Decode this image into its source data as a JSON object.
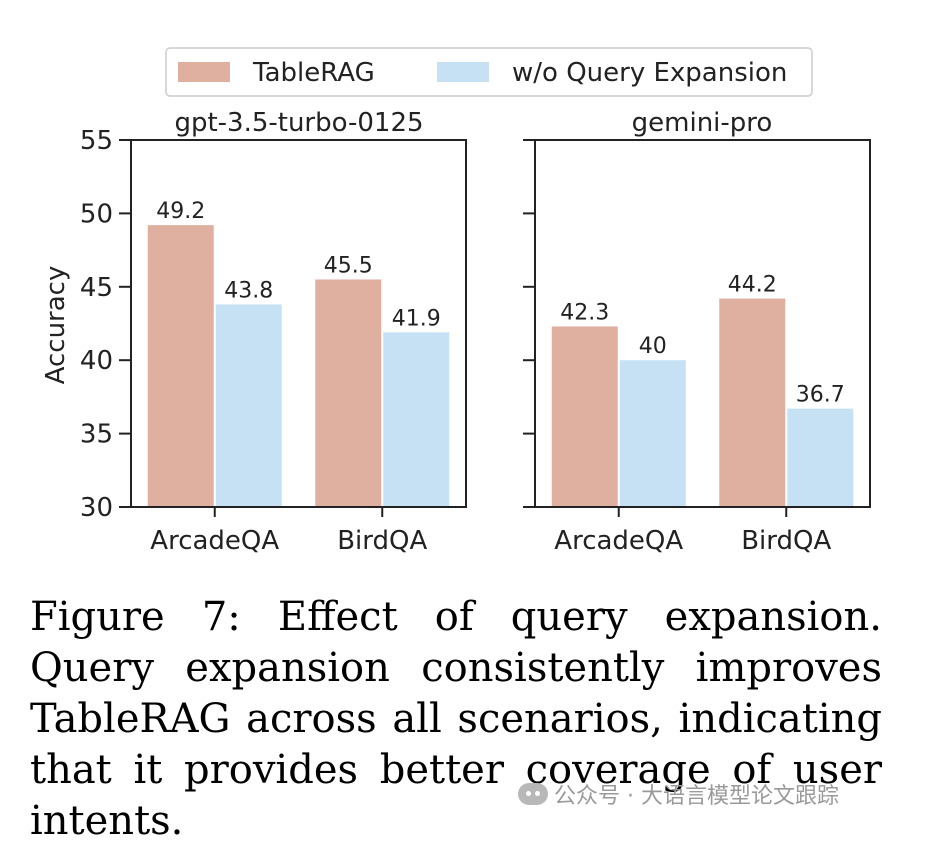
{
  "chart_data": {
    "type": "bar",
    "ylabel": "Accuracy",
    "ylim": [
      30,
      55
    ],
    "yticks": [
      30,
      35,
      40,
      45,
      50,
      55
    ],
    "grid": false,
    "legend_position": "top-center",
    "legend": [
      {
        "name": "TableRAG",
        "color": "#dfafa0"
      },
      {
        "name": "w/o Query Expansion",
        "color": "#c6e0f4"
      }
    ],
    "panels": [
      {
        "title": "gpt-3.5-turbo-0125",
        "categories": [
          "ArcadeQA",
          "BirdQA"
        ],
        "series": [
          {
            "name": "TableRAG",
            "values": [
              49.2,
              45.5
            ],
            "labels": [
              "49.2",
              "45.5"
            ]
          },
          {
            "name": "w/o Query Expansion",
            "values": [
              43.8,
              41.9
            ],
            "labels": [
              "43.8",
              "41.9"
            ]
          }
        ]
      },
      {
        "title": "gemini-pro",
        "categories": [
          "ArcadeQA",
          "BirdQA"
        ],
        "series": [
          {
            "name": "TableRAG",
            "values": [
              42.3,
              44.2
            ],
            "labels": [
              "42.3",
              "44.2"
            ]
          },
          {
            "name": "w/o Query Expansion",
            "values": [
              40,
              36.7
            ],
            "labels": [
              "40",
              "36.7"
            ]
          }
        ]
      }
    ]
  },
  "caption": {
    "text": "Figure 7: Effect of query expansion. Query expansion consistently improves TableRAG across all scenarios, indicating that it provides better coverage of user intents."
  },
  "watermark": {
    "text": "公众号 · 大语言模型论文跟踪",
    "icon": "wechat-icon"
  }
}
